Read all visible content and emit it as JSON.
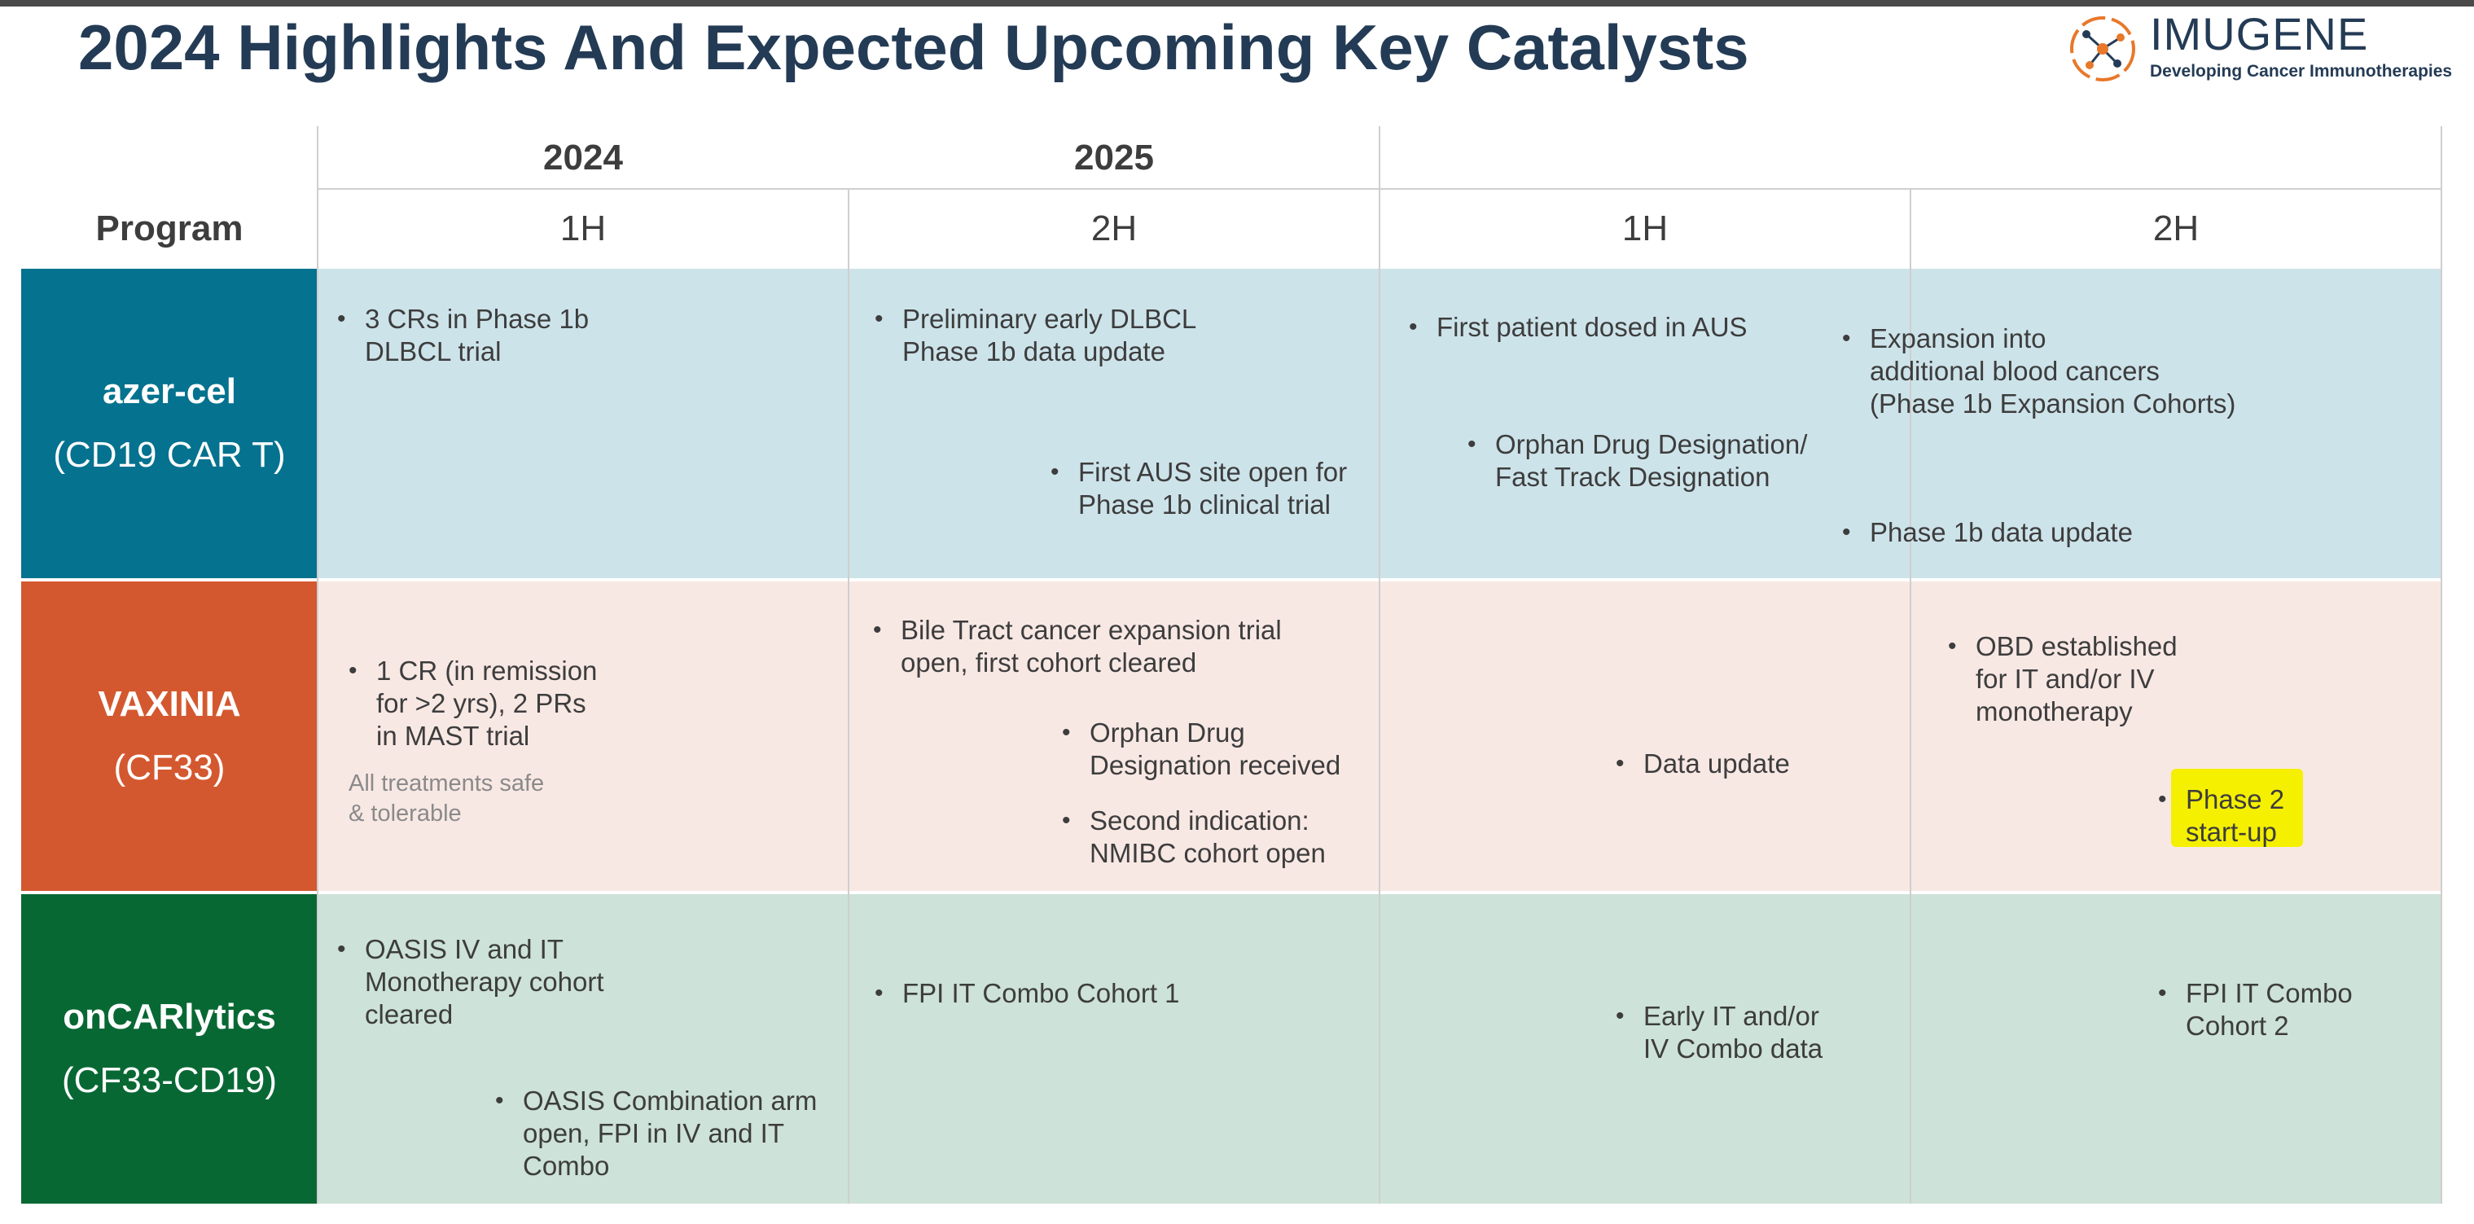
{
  "title": "2024 Highlights And Expected Upcoming Key Catalysts",
  "logo": {
    "name": "IMUGENE",
    "tagline": "Developing Cancer Immunotherapies"
  },
  "header": {
    "program_label": "Program",
    "years": [
      "2024",
      "2025"
    ],
    "halves": [
      "1H",
      "2H",
      "1H",
      "2H"
    ]
  },
  "colors": {
    "azer_label": "#05728f",
    "azer_band": "#cde3ea",
    "vax_label": "#d4582f",
    "vax_band": "#f8e8e4",
    "onc_label": "#086834",
    "onc_band": "#cde2d8",
    "highlight": "#f5f000"
  },
  "programs": [
    {
      "name": "azer-cel",
      "code": "(CD19 CAR T)",
      "bullets": [
        "3 CRs in Phase 1b\nDLBCL trial",
        "Preliminary early DLBCL\nPhase 1b data update",
        "First AUS site open for\nPhase 1b clinical trial",
        "First patient dosed in AUS",
        "Orphan Drug Designation/\nFast Track Designation",
        "Expansion into\nadditional blood cancers\n(Phase 1b Expansion Cohorts)",
        "Phase 1b data update"
      ]
    },
    {
      "name": "VAXINIA",
      "code": "(CF33)",
      "bullets": [
        "1 CR (in remission\nfor >2 yrs), 2 PRs\nin MAST trial",
        "Bile Tract cancer expansion trial\nopen, first cohort cleared",
        "Orphan Drug\nDesignation received",
        "Second indication:\nNMIBC cohort open",
        "Data update",
        "OBD established\nfor IT and/or IV\nmonotherapy",
        "Phase 2\nstart-up"
      ],
      "note": "All treatments safe\n& tolerable"
    },
    {
      "name": "onCARlytics",
      "code": "(CF33-CD19)",
      "bullets": [
        "OASIS IV and IT\nMonotherapy cohort\ncleared",
        "OASIS Combination arm\nopen, FPI in IV and IT\nCombo",
        "FPI IT Combo Cohort 1",
        "Early IT and/or\nIV Combo data",
        "FPI IT Combo\nCohort 2"
      ]
    }
  ]
}
